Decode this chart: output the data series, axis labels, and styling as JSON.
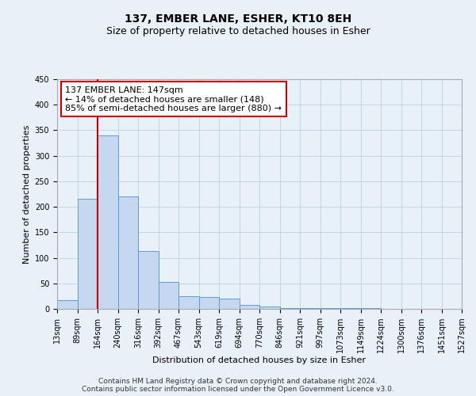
{
  "title": "137, EMBER LANE, ESHER, KT10 8EH",
  "subtitle": "Size of property relative to detached houses in Esher",
  "xlabel": "Distribution of detached houses by size in Esher",
  "ylabel": "Number of detached properties",
  "bar_values": [
    17,
    215,
    340,
    220,
    113,
    53,
    25,
    23,
    20,
    8,
    5,
    1,
    1,
    1,
    1,
    1
  ],
  "bin_labels": [
    "13sqm",
    "89sqm",
    "164sqm",
    "240sqm",
    "316sqm",
    "392sqm",
    "467sqm",
    "543sqm",
    "619sqm",
    "694sqm",
    "770sqm",
    "846sqm",
    "921sqm",
    "997sqm",
    "1073sqm",
    "1149sqm",
    "1224sqm",
    "1300sqm",
    "1376sqm",
    "1451sqm",
    "1527sqm"
  ],
  "bar_color": "#c5d8f0",
  "bar_edge_color": "#5b9bd5",
  "vline_x": 2,
  "vline_color": "#cc0000",
  "annotation_box_text": "137 EMBER LANE: 147sqm\n← 14% of detached houses are smaller (148)\n85% of semi-detached houses are larger (880) →",
  "annotation_box_color": "#cc0000",
  "annotation_text_color": "#000000",
  "ylim": [
    0,
    450
  ],
  "yticks": [
    0,
    50,
    100,
    150,
    200,
    250,
    300,
    350,
    400,
    450
  ],
  "grid_color": "#c0cfe0",
  "background_color": "#e8f0f8",
  "footer_line1": "Contains HM Land Registry data © Crown copyright and database right 2024.",
  "footer_line2": "Contains public sector information licensed under the Open Government Licence v3.0.",
  "title_fontsize": 10,
  "subtitle_fontsize": 9,
  "xlabel_fontsize": 8,
  "ylabel_fontsize": 8,
  "tick_fontsize": 7,
  "annotation_fontsize": 8,
  "footer_fontsize": 6.5
}
